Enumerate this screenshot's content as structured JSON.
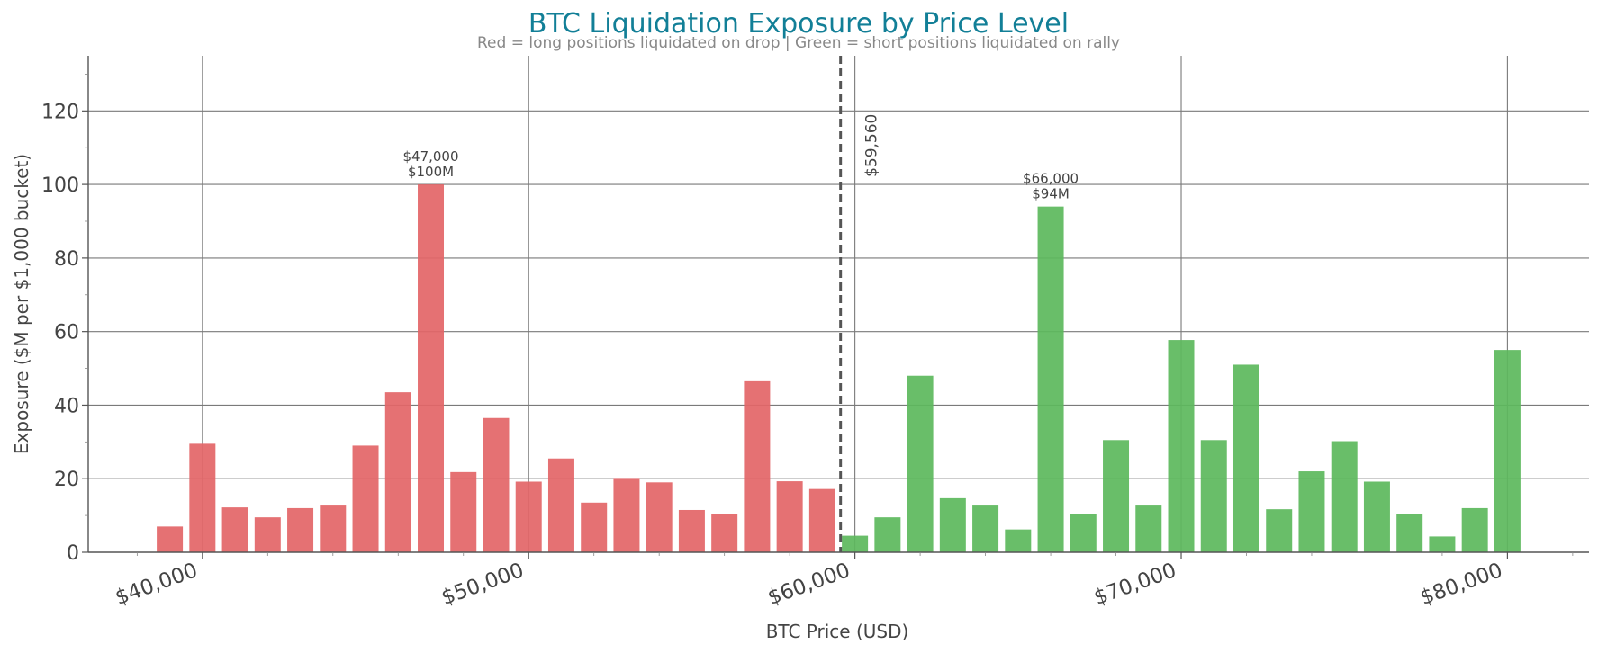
{
  "chart_data": {
    "type": "bar",
    "title": "BTC Liquidation Exposure by Price Level",
    "subtitle": "Red = long positions liquidated on drop  |  Green = short positions liquidated on rally",
    "xlabel": "BTC Price (USD)",
    "ylabel": "Exposure ($M per $1,000 bucket)",
    "xlim": [
      36500,
      82500
    ],
    "ylim": [
      0,
      135
    ],
    "yticks": [
      0,
      20,
      40,
      60,
      80,
      100,
      120
    ],
    "xticks": [
      40000,
      50000,
      60000,
      70000,
      80000
    ],
    "xtick_labels": [
      "$40,000",
      "$50,000",
      "$60,000",
      "$70,000",
      "$80,000"
    ],
    "grid": true,
    "current_price": 59560,
    "current_price_label": "$59,560",
    "colors": {
      "long": "#e36567",
      "short": "#5cb85c",
      "title": "#127f97"
    },
    "series": [
      {
        "name": "long",
        "x": [
          39000,
          40000,
          41000,
          42000,
          43000,
          44000,
          45000,
          46000,
          47000,
          48000,
          49000,
          50000,
          51000,
          52000,
          53000,
          54000,
          55000,
          56000,
          57000,
          58000,
          59000
        ],
        "values": [
          7,
          29.5,
          12.2,
          9.5,
          12,
          12.7,
          29,
          43.5,
          100,
          21.8,
          36.5,
          19.2,
          25.5,
          13.5,
          20.2,
          19,
          11.5,
          10.3,
          46.5,
          19.3,
          17.2
        ]
      },
      {
        "name": "short",
        "x": [
          60000,
          61000,
          62000,
          63000,
          64000,
          65000,
          66000,
          67000,
          68000,
          69000,
          70000,
          71000,
          72000,
          73000,
          74000,
          75000,
          76000,
          77000,
          78000,
          79000,
          80000
        ],
        "values": [
          4.5,
          9.5,
          48,
          14.7,
          12.7,
          6.2,
          94,
          10.3,
          30.5,
          12.7,
          57.7,
          30.5,
          51,
          11.7,
          22,
          30.2,
          19.2,
          10.5,
          4.3,
          12,
          55
        ]
      }
    ],
    "annotations": [
      {
        "x": 47000,
        "y": 100,
        "lines": [
          "$47,000",
          "$100M"
        ]
      },
      {
        "x": 66000,
        "y": 94,
        "lines": [
          "$66,000",
          "$94M"
        ]
      }
    ]
  }
}
